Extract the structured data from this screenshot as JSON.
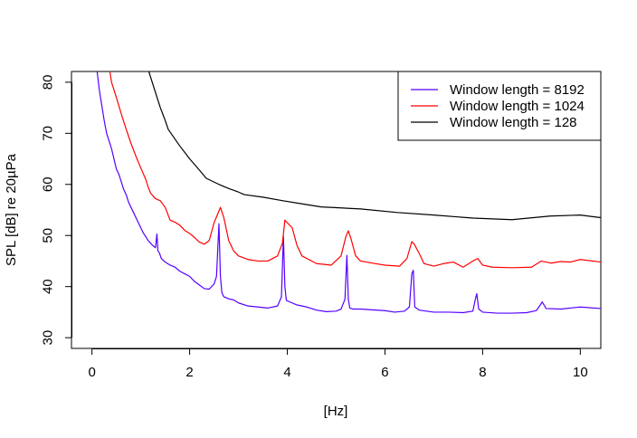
{
  "chart_data": {
    "type": "line",
    "title": "",
    "xlabel": "[Hz]",
    "ylabel": "SPL [dB] re 20µPa",
    "xlim": [
      -0.42,
      10.42
    ],
    "ylim": [
      27.9,
      82.1
    ],
    "x_ticks": [
      0,
      2,
      4,
      6,
      8,
      10
    ],
    "y_ticks": [
      30,
      40,
      50,
      60,
      70,
      80
    ],
    "legend_position": "top-right",
    "grid": false,
    "series": [
      {
        "name": "Window length = 8192",
        "color": "#5500ff",
        "x": [
          0.1,
          0.15,
          0.2,
          0.25,
          0.3,
          0.35,
          0.4,
          0.45,
          0.5,
          0.55,
          0.6,
          0.65,
          0.7,
          0.75,
          0.8,
          0.85,
          0.9,
          0.95,
          1.0,
          1.05,
          1.1,
          1.15,
          1.2,
          1.25,
          1.3,
          1.33,
          1.35,
          1.38,
          1.42,
          1.5,
          1.6,
          1.7,
          1.8,
          1.9,
          2.0,
          2.1,
          2.2,
          2.3,
          2.4,
          2.5,
          2.55,
          2.6,
          2.63,
          2.66,
          2.7,
          2.8,
          2.9,
          3.0,
          3.2,
          3.4,
          3.6,
          3.8,
          3.88,
          3.92,
          3.95,
          3.98,
          4.05,
          4.2,
          4.4,
          4.6,
          4.8,
          5.0,
          5.1,
          5.18,
          5.22,
          5.25,
          5.28,
          5.35,
          5.5,
          5.8,
          6.0,
          6.2,
          6.4,
          6.5,
          6.55,
          6.58,
          6.61,
          6.7,
          7.0,
          7.3,
          7.6,
          7.8,
          7.85,
          7.88,
          7.92,
          8.0,
          8.3,
          8.6,
          8.9,
          9.1,
          9.18,
          9.22,
          9.3,
          9.6,
          10.0,
          10.42
        ],
        "y": [
          82.5,
          78.5,
          75.5,
          72.5,
          70.0,
          68.5,
          67.0,
          65.0,
          63.0,
          62.0,
          60.5,
          59.0,
          58.0,
          56.5,
          55.5,
          54.5,
          53.5,
          52.5,
          51.5,
          50.5,
          49.8,
          49.0,
          48.5,
          48.0,
          47.6,
          50.3,
          47.0,
          46.6,
          45.5,
          44.8,
          44.2,
          43.8,
          43.0,
          42.5,
          42.0,
          41.0,
          40.3,
          39.6,
          39.5,
          40.5,
          42.0,
          52.3,
          42.0,
          38.8,
          38.0,
          37.6,
          37.4,
          36.8,
          36.2,
          36.0,
          35.8,
          36.2,
          38.0,
          49.9,
          40.0,
          37.3,
          37.0,
          36.4,
          36.0,
          35.4,
          35.1,
          35.2,
          35.6,
          37.5,
          46.1,
          37.5,
          35.8,
          35.6,
          35.6,
          35.4,
          35.3,
          35.0,
          35.2,
          36.0,
          42.5,
          43.2,
          36.0,
          35.4,
          35.0,
          35.0,
          34.9,
          35.2,
          37.5,
          38.6,
          35.6,
          35.0,
          34.8,
          34.8,
          34.9,
          35.3,
          36.4,
          37.0,
          35.7,
          35.6,
          36.0,
          35.7
        ]
      },
      {
        "name": "Window length = 1024",
        "color": "#ff0000",
        "x": [
          0.36,
          0.4,
          0.5,
          0.6,
          0.7,
          0.8,
          0.9,
          1.0,
          1.1,
          1.15,
          1.2,
          1.3,
          1.4,
          1.5,
          1.6,
          1.7,
          1.8,
          1.9,
          2.0,
          2.1,
          2.2,
          2.3,
          2.4,
          2.5,
          2.6,
          2.63,
          2.7,
          2.8,
          2.9,
          3.0,
          3.2,
          3.4,
          3.6,
          3.8,
          3.9,
          3.95,
          4.0,
          4.1,
          4.2,
          4.3,
          4.6,
          4.9,
          5.1,
          5.2,
          5.25,
          5.3,
          5.4,
          5.5,
          5.8,
          6.0,
          6.3,
          6.45,
          6.55,
          6.6,
          6.7,
          6.8,
          7.0,
          7.2,
          7.4,
          7.6,
          7.8,
          7.9,
          8.0,
          8.2,
          8.6,
          9.0,
          9.2,
          9.4,
          9.6,
          9.8,
          10.0,
          10.42
        ],
        "y": [
          82.5,
          80.0,
          77.0,
          73.8,
          70.8,
          68.0,
          65.5,
          63.2,
          61.0,
          59.5,
          58.3,
          57.2,
          56.8,
          55.5,
          53.0,
          52.6,
          52.0,
          51.0,
          50.4,
          49.6,
          48.7,
          48.3,
          49.0,
          52.5,
          54.8,
          55.5,
          53.5,
          49.0,
          47.0,
          46.0,
          45.3,
          45.0,
          45.0,
          46.0,
          48.5,
          53.0,
          52.5,
          51.5,
          48.0,
          46.0,
          44.5,
          44.2,
          46.0,
          49.8,
          50.9,
          49.5,
          46.0,
          45.0,
          44.5,
          44.2,
          44.0,
          45.5,
          48.8,
          48.3,
          46.5,
          44.5,
          44.0,
          44.5,
          44.8,
          43.8,
          45.0,
          45.5,
          44.2,
          43.8,
          43.7,
          43.8,
          45.0,
          44.6,
          44.9,
          44.8,
          45.3,
          44.8
        ]
      },
      {
        "name": "Window length = 128",
        "color": "#000000",
        "x": [
          1.15,
          1.2,
          1.3,
          1.4,
          1.5,
          1.56,
          1.8,
          2.0,
          2.2,
          2.34,
          2.6,
          2.8,
          3.0,
          3.12,
          3.5,
          3.91,
          4.3,
          4.69,
          5.5,
          6.25,
          7.0,
          7.81,
          8.6,
          9.38,
          10.0,
          10.16,
          10.42
        ],
        "y": [
          82.5,
          81.0,
          78.0,
          75.0,
          72.5,
          70.8,
          67.5,
          65.0,
          62.8,
          61.2,
          60.0,
          59.2,
          58.5,
          58.0,
          57.5,
          56.8,
          56.2,
          55.6,
          55.2,
          54.5,
          54.0,
          53.4,
          53.1,
          53.8,
          54.0,
          53.8,
          53.5
        ]
      }
    ]
  }
}
